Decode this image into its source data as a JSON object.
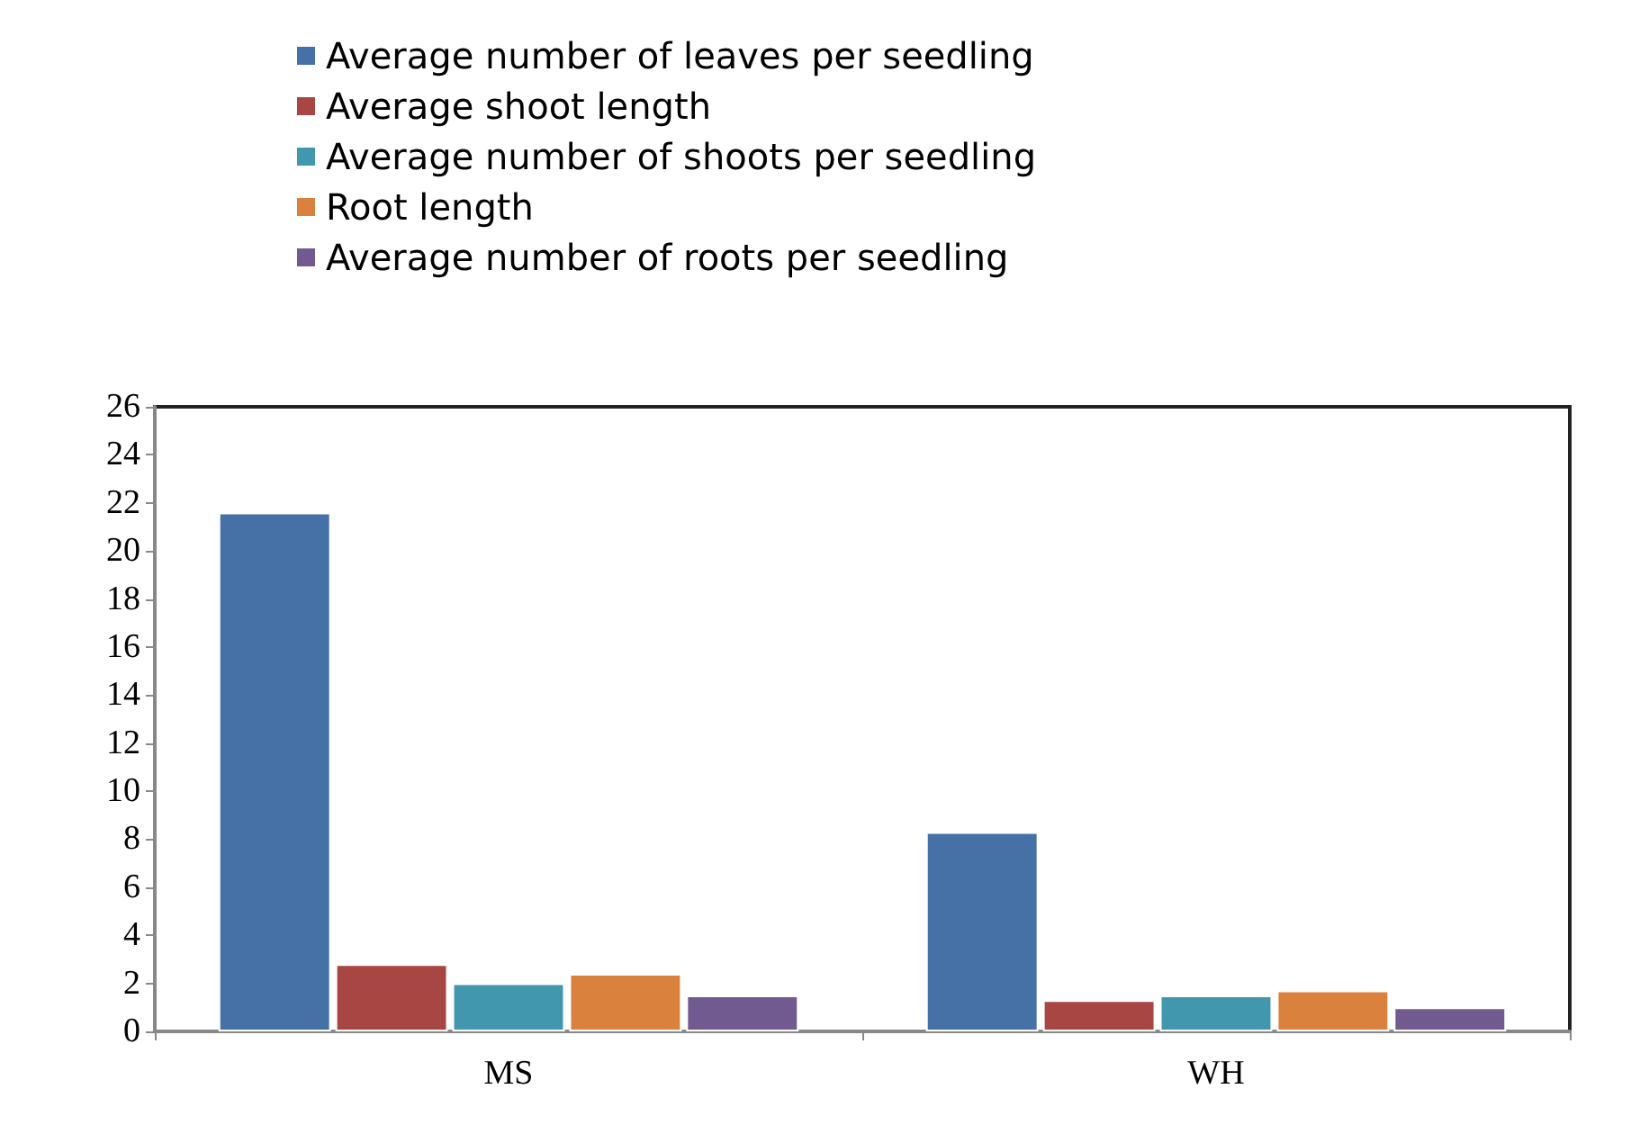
{
  "chart_data": {
    "type": "bar",
    "categories": [
      "MS",
      "WH"
    ],
    "series": [
      {
        "name": "Average number of leaves per seedling",
        "color": "#4571a6",
        "values": [
          21.6,
          8.3
        ]
      },
      {
        "name": "Average shoot length",
        "color": "#a84643",
        "values": [
          2.8,
          1.3
        ]
      },
      {
        "name": "Average number of shoots per seedling",
        "color": "#4198ae",
        "values": [
          2.0,
          1.5
        ]
      },
      {
        "name": "Root length",
        "color": "#da813d",
        "values": [
          2.4,
          1.7
        ]
      },
      {
        "name": "Average number of roots per seedling",
        "color": "#715a8f",
        "values": [
          1.5,
          1.0
        ]
      }
    ],
    "ylim": [
      0,
      26
    ],
    "yticks": [
      0,
      2,
      4,
      6,
      8,
      10,
      12,
      14,
      16,
      18,
      20,
      22,
      24,
      26
    ],
    "grid": false,
    "legend": "top"
  }
}
